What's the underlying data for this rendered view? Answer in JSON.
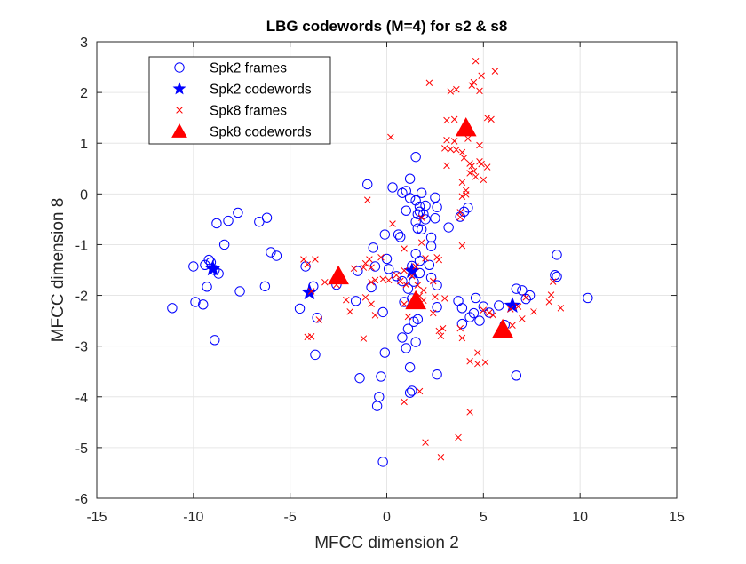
{
  "chart_data": {
    "type": "scatter",
    "title": "LBG codewords (M=4) for s2 & s8",
    "xlabel": "MFCC dimension 2",
    "ylabel": "MFCC dimension 8",
    "xlim": [
      -15,
      15
    ],
    "ylim": [
      -6,
      3
    ],
    "xticks": [
      -15,
      -10,
      -5,
      0,
      5,
      10,
      15
    ],
    "yticks": [
      -6,
      -5,
      -4,
      -3,
      -2,
      -1,
      0,
      1,
      2,
      3
    ],
    "xtick_labels": [
      "-15",
      "-10",
      "-5",
      "0",
      "5",
      "10",
      "15"
    ],
    "ytick_labels": [
      "-6",
      "-5",
      "-4",
      "-3",
      "-2",
      "-1",
      "0",
      "1",
      "2",
      "3"
    ],
    "grid": true,
    "legend_position": "top-left",
    "colors": {
      "spk2": "#0000ff",
      "spk8": "#ff0000"
    },
    "series": [
      {
        "name": "Spk2 frames",
        "marker": "circle",
        "color": "#0000ff",
        "points": [
          [
            -11.1,
            -2.25
          ],
          [
            -10.0,
            -1.43
          ],
          [
            -9.9,
            -2.13
          ],
          [
            -9.5,
            -2.18
          ],
          [
            -9.4,
            -1.4
          ],
          [
            -9.2,
            -1.3
          ],
          [
            -9.1,
            -1.35
          ],
          [
            -9.3,
            -1.83
          ],
          [
            -8.9,
            -1.5
          ],
          [
            -8.7,
            -1.57
          ],
          [
            -8.9,
            -2.88
          ],
          [
            -8.8,
            -0.58
          ],
          [
            -8.4,
            -1.0
          ],
          [
            -8.2,
            -0.53
          ],
          [
            -7.7,
            -0.37
          ],
          [
            -7.6,
            -1.92
          ],
          [
            -6.6,
            -0.55
          ],
          [
            -6.3,
            -1.82
          ],
          [
            -6.2,
            -0.47
          ],
          [
            -6.0,
            -1.15
          ],
          [
            -5.7,
            -1.22
          ],
          [
            -4.5,
            -2.26
          ],
          [
            -4.2,
            -1.43
          ],
          [
            -3.8,
            -1.82
          ],
          [
            -3.6,
            -2.44
          ],
          [
            -3.7,
            -3.17
          ],
          [
            -2.6,
            -1.79
          ],
          [
            -1.5,
            -1.52
          ],
          [
            -1.6,
            -2.11
          ],
          [
            -1.4,
            -3.63
          ],
          [
            -1.0,
            0.19
          ],
          [
            -0.7,
            -1.06
          ],
          [
            -0.8,
            -1.84
          ],
          [
            -0.6,
            -1.43
          ],
          [
            -0.5,
            -4.18
          ],
          [
            -0.4,
            -4.0
          ],
          [
            -0.3,
            -3.6
          ],
          [
            -0.1,
            -3.13
          ],
          [
            -0.2,
            -2.33
          ],
          [
            -0.1,
            -0.8
          ],
          [
            -0.2,
            -5.28
          ],
          [
            0.0,
            -1.28
          ],
          [
            0.1,
            -1.48
          ],
          [
            0.3,
            0.13
          ],
          [
            0.5,
            -1.62
          ],
          [
            0.6,
            -0.8
          ],
          [
            0.7,
            -0.85
          ],
          [
            0.8,
            -1.72
          ],
          [
            0.8,
            -2.83
          ],
          [
            0.9,
            -2.13
          ],
          [
            0.8,
            0.02
          ],
          [
            1.0,
            0.06
          ],
          [
            1.0,
            -3.04
          ],
          [
            1.0,
            -0.33
          ],
          [
            1.1,
            -2.66
          ],
          [
            1.1,
            -1.87
          ],
          [
            1.2,
            -3.92
          ],
          [
            1.2,
            -3.42
          ],
          [
            1.2,
            0.3
          ],
          [
            1.2,
            -0.08
          ],
          [
            1.3,
            -3.88
          ],
          [
            1.3,
            -2.06
          ],
          [
            1.3,
            -1.42
          ],
          [
            1.4,
            -2.52
          ],
          [
            1.4,
            -1.73
          ],
          [
            1.5,
            0.73
          ],
          [
            1.5,
            -1.18
          ],
          [
            1.5,
            -2.92
          ],
          [
            1.5,
            -0.55
          ],
          [
            1.5,
            -0.13
          ],
          [
            1.6,
            -0.4
          ],
          [
            1.6,
            -0.68
          ],
          [
            1.6,
            -2.47
          ],
          [
            1.7,
            -1.56
          ],
          [
            1.7,
            -1.32
          ],
          [
            1.7,
            -0.35
          ],
          [
            1.7,
            -0.25
          ],
          [
            1.8,
            -0.7
          ],
          [
            1.8,
            0.02
          ],
          [
            1.9,
            -0.4
          ],
          [
            2.0,
            -0.5
          ],
          [
            2.0,
            -0.23
          ],
          [
            2.2,
            -1.4
          ],
          [
            2.3,
            -1.03
          ],
          [
            2.3,
            -1.65
          ],
          [
            2.3,
            -0.86
          ],
          [
            2.5,
            -0.48
          ],
          [
            2.5,
            -0.07
          ],
          [
            2.6,
            -0.26
          ],
          [
            2.6,
            -3.56
          ],
          [
            2.6,
            -1.8
          ],
          [
            2.6,
            -2.23
          ],
          [
            3.2,
            -0.66
          ],
          [
            3.7,
            -2.11
          ],
          [
            3.8,
            -0.45
          ],
          [
            3.9,
            -2.25
          ],
          [
            3.9,
            -2.56
          ],
          [
            4.0,
            -0.35
          ],
          [
            4.2,
            -0.27
          ],
          [
            4.3,
            -2.43
          ],
          [
            4.5,
            -2.35
          ],
          [
            4.6,
            -2.05
          ],
          [
            4.8,
            -2.5
          ],
          [
            5.0,
            -2.22
          ],
          [
            5.3,
            -2.34
          ],
          [
            5.8,
            -2.2
          ],
          [
            6.1,
            -2.58
          ],
          [
            6.7,
            -1.87
          ],
          [
            6.7,
            -3.58
          ],
          [
            7.0,
            -1.9
          ],
          [
            7.2,
            -2.07
          ],
          [
            7.4,
            -2.0
          ],
          [
            8.7,
            -1.6
          ],
          [
            8.8,
            -1.2
          ],
          [
            8.8,
            -1.63
          ],
          [
            10.4,
            -2.05
          ]
        ]
      },
      {
        "name": "Spk2 codewords",
        "marker": "star",
        "color": "#0000ff",
        "points": [
          [
            -9.0,
            -1.47
          ],
          [
            -4.0,
            -1.94
          ],
          [
            1.3,
            -1.52
          ],
          [
            6.5,
            -2.2
          ]
        ]
      },
      {
        "name": "Spk8 frames",
        "marker": "x",
        "color": "#ff0000",
        "points": [
          [
            -4.3,
            -1.29
          ],
          [
            -4.1,
            -1.39
          ],
          [
            -4.1,
            -2.82
          ],
          [
            -3.9,
            -1.92
          ],
          [
            -3.9,
            -2.81
          ],
          [
            -3.7,
            -1.29
          ],
          [
            -3.5,
            -2.48
          ],
          [
            -3.2,
            -1.74
          ],
          [
            -2.6,
            -1.79
          ],
          [
            -2.1,
            -2.09
          ],
          [
            -1.9,
            -2.32
          ],
          [
            -1.7,
            -1.47
          ],
          [
            -1.2,
            -1.45
          ],
          [
            -1.1,
            -1.37
          ],
          [
            -1.1,
            -2.04
          ],
          [
            -1.2,
            -2.85
          ],
          [
            -0.9,
            -1.29
          ],
          [
            -0.8,
            -1.45
          ],
          [
            -0.8,
            -1.74
          ],
          [
            -0.8,
            -2.17
          ],
          [
            -1.0,
            -0.12
          ],
          [
            -0.6,
            -1.7
          ],
          [
            -0.6,
            -2.39
          ],
          [
            -0.3,
            -1.25
          ],
          [
            -0.2,
            -1.68
          ],
          [
            0.1,
            -1.7
          ],
          [
            0.2,
            1.12
          ],
          [
            0.3,
            -0.59
          ],
          [
            0.5,
            -1.6
          ],
          [
            0.7,
            -1.72
          ],
          [
            0.9,
            -2.17
          ],
          [
            0.9,
            -1.51
          ],
          [
            0.9,
            -1.08
          ],
          [
            0.9,
            -4.1
          ],
          [
            1.0,
            -1.79
          ],
          [
            1.1,
            -2.42
          ],
          [
            1.3,
            -1.62
          ],
          [
            1.5,
            -1.43
          ],
          [
            1.6,
            -1.8
          ],
          [
            1.7,
            -2.01
          ],
          [
            1.7,
            -3.89
          ],
          [
            1.8,
            -0.96
          ],
          [
            1.8,
            -0.47
          ],
          [
            1.9,
            -1.9
          ],
          [
            1.9,
            -2.1
          ],
          [
            2.0,
            -4.9
          ],
          [
            2.0,
            -1.27
          ],
          [
            2.2,
            2.19
          ],
          [
            2.4,
            -1.72
          ],
          [
            2.4,
            -2.35
          ],
          [
            2.5,
            -2.03
          ],
          [
            2.6,
            -1.25
          ],
          [
            2.7,
            -1.3
          ],
          [
            2.7,
            -2.7
          ],
          [
            2.8,
            -5.19
          ],
          [
            2.8,
            -2.8
          ],
          [
            2.9,
            -2.65
          ],
          [
            3.0,
            -2.06
          ],
          [
            3.0,
            0.9
          ],
          [
            3.1,
            0.56
          ],
          [
            3.1,
            1.45
          ],
          [
            3.1,
            1.06
          ],
          [
            3.3,
            2.02
          ],
          [
            3.3,
            0.88
          ],
          [
            3.5,
            1.47
          ],
          [
            3.5,
            1.04
          ],
          [
            3.6,
            2.06
          ],
          [
            3.6,
            0.87
          ],
          [
            3.7,
            -4.8
          ],
          [
            3.8,
            -0.36
          ],
          [
            3.8,
            -2.65
          ],
          [
            3.8,
            -0.46
          ],
          [
            3.9,
            0.23
          ],
          [
            3.9,
            -0.05
          ],
          [
            3.9,
            0.82
          ],
          [
            3.9,
            -1.02
          ],
          [
            3.9,
            -2.84
          ],
          [
            4.0,
            0.71
          ],
          [
            4.1,
            0.07
          ],
          [
            4.1,
            -0.01
          ],
          [
            4.2,
            1.09
          ],
          [
            4.3,
            0.6
          ],
          [
            4.3,
            0.41
          ],
          [
            4.3,
            -3.3
          ],
          [
            4.3,
            -4.3
          ],
          [
            4.4,
            0.55
          ],
          [
            4.4,
            2.14
          ],
          [
            4.5,
            2.2
          ],
          [
            4.5,
            0.45
          ],
          [
            4.6,
            2.62
          ],
          [
            4.6,
            0.34
          ],
          [
            4.7,
            -3.35
          ],
          [
            4.7,
            -3.13
          ],
          [
            4.8,
            0.64
          ],
          [
            4.8,
            2.03
          ],
          [
            4.8,
            0.96
          ],
          [
            4.9,
            2.33
          ],
          [
            4.9,
            0.59
          ],
          [
            5.0,
            -2.29
          ],
          [
            5.0,
            0.28
          ],
          [
            5.1,
            -3.32
          ],
          [
            5.2,
            1.5
          ],
          [
            5.2,
            0.53
          ],
          [
            5.3,
            -2.34
          ],
          [
            5.4,
            1.47
          ],
          [
            5.5,
            -2.39
          ],
          [
            5.6,
            2.42
          ],
          [
            5.9,
            -2.73
          ],
          [
            6.4,
            -2.27
          ],
          [
            6.5,
            -2.59
          ],
          [
            6.8,
            -2.22
          ],
          [
            7.2,
            -2.04
          ],
          [
            7.0,
            -2.46
          ],
          [
            7.6,
            -2.32
          ],
          [
            8.4,
            -2.13
          ],
          [
            8.5,
            -1.99
          ],
          [
            8.6,
            -1.73
          ],
          [
            9.0,
            -2.25
          ]
        ]
      },
      {
        "name": "Spk8 codewords",
        "marker": "triangle",
        "color": "#ff0000",
        "points": [
          [
            -2.5,
            -1.62
          ],
          [
            1.5,
            -2.11
          ],
          [
            4.1,
            1.3
          ],
          [
            6.0,
            -2.67
          ]
        ]
      }
    ]
  }
}
